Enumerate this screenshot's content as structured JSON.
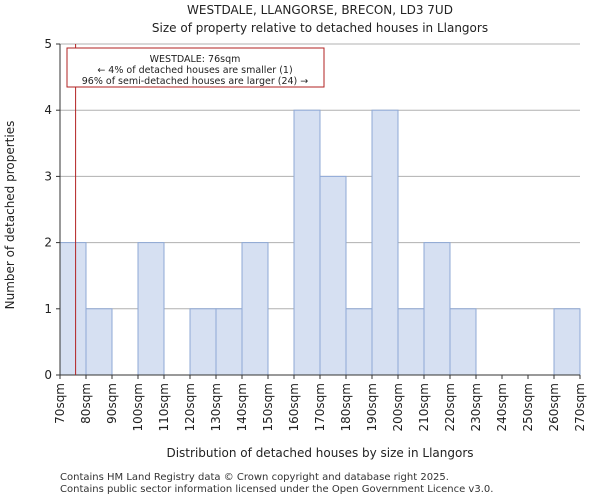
{
  "chart_data": {
    "type": "bar",
    "title": "WESTDALE, LLANGORSE, BRECON, LD3 7UD",
    "subtitle": "Size of property relative to detached houses in Llangors",
    "xlabel": "Distribution of detached houses by size in Llangors",
    "ylabel": "Number of detached properties",
    "x_tick_labels": [
      "70sqm",
      "80sqm",
      "90sqm",
      "100sqm",
      "110sqm",
      "120sqm",
      "130sqm",
      "140sqm",
      "150sqm",
      "160sqm",
      "170sqm",
      "180sqm",
      "190sqm",
      "200sqm",
      "210sqm",
      "220sqm",
      "230sqm",
      "240sqm",
      "250sqm",
      "260sqm",
      "270sqm"
    ],
    "bins": [
      {
        "from": 70,
        "to": 80,
        "value": 2
      },
      {
        "from": 80,
        "to": 90,
        "value": 1
      },
      {
        "from": 90,
        "to": 100,
        "value": 0
      },
      {
        "from": 100,
        "to": 110,
        "value": 2
      },
      {
        "from": 110,
        "to": 120,
        "value": 0
      },
      {
        "from": 120,
        "to": 130,
        "value": 1
      },
      {
        "from": 130,
        "to": 140,
        "value": 1
      },
      {
        "from": 140,
        "to": 150,
        "value": 2
      },
      {
        "from": 150,
        "to": 160,
        "value": 0
      },
      {
        "from": 160,
        "to": 170,
        "value": 4
      },
      {
        "from": 170,
        "to": 180,
        "value": 3
      },
      {
        "from": 180,
        "to": 190,
        "value": 1
      },
      {
        "from": 190,
        "to": 200,
        "value": 4
      },
      {
        "from": 200,
        "to": 210,
        "value": 1
      },
      {
        "from": 210,
        "to": 220,
        "value": 2
      },
      {
        "from": 220,
        "to": 230,
        "value": 1
      },
      {
        "from": 230,
        "to": 240,
        "value": 0
      },
      {
        "from": 240,
        "to": 250,
        "value": 0
      },
      {
        "from": 250,
        "to": 260,
        "value": 0
      },
      {
        "from": 260,
        "to": 270,
        "value": 1
      }
    ],
    "xlim": [
      70,
      270
    ],
    "ylim": [
      0,
      5
    ],
    "y_ticks": [
      0,
      1,
      2,
      3,
      4,
      5
    ],
    "grid": "horizontal",
    "bar_color": "#d6e0f2",
    "bar_edge_color": "#8fa9d6",
    "marker": {
      "x": 76,
      "color": "#b22222"
    },
    "annotation": {
      "lines": [
        "WESTDALE: 76sqm",
        "← 4% of detached houses are smaller (1)",
        "96% of semi-detached houses are larger (24) →"
      ],
      "border_color": "#b22222"
    }
  },
  "footer": {
    "line1": "Contains HM Land Registry data © Crown copyright and database right 2025.",
    "line2": "Contains public sector information licensed under the Open Government Licence v3.0."
  }
}
